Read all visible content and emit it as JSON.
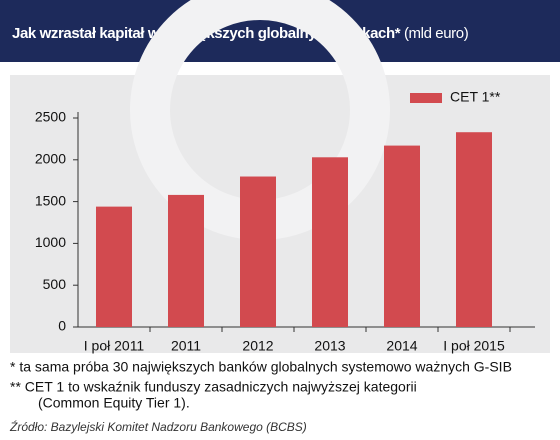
{
  "chart_data": {
    "type": "bar",
    "title": "Jak wzrastał kapitał w największych globalnych bankach*",
    "subtitle": "(mld euro)",
    "categories": [
      "I poł 2011",
      "2011",
      "2012",
      "2013",
      "2014",
      "I poł 2015"
    ],
    "series": [
      {
        "name": "CET 1**",
        "color": "#d24a4f",
        "values": [
          1440,
          1580,
          1800,
          2030,
          2170,
          2330
        ]
      }
    ],
    "ylim": [
      0,
      2500
    ],
    "yticks": [
      0,
      500,
      1000,
      1500,
      2000,
      2500
    ],
    "grid": false,
    "legend": "top-right",
    "notes": [
      "* ta sama próba 30 największych banków globalnych systemowo ważnych G-SIB",
      "** CET 1 to wskaźnik funduszy zasadniczych najwyższej kategorii",
      "(Common Equity Tier 1)."
    ],
    "source": "Źródło: Bazylejski Komitet Nadzoru Bankowego (BCBS)"
  }
}
